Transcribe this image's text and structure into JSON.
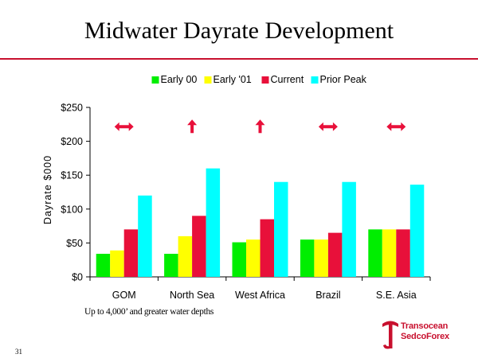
{
  "slide": {
    "title": "Midwater Dayrate Development",
    "footnote": "Up to 4,000’ and greater water depths",
    "page_number": "31",
    "logo": {
      "line1": "Transocean",
      "line2": "SedcoForex",
      "color": "#c8102e"
    }
  },
  "chart_data": {
    "type": "bar",
    "title": "",
    "xlabel": "",
    "ylabel": "Dayrate $000",
    "ylim": [
      0,
      250
    ],
    "yticks": [
      0,
      50,
      100,
      150,
      200,
      250
    ],
    "ytick_labels": [
      "$0",
      "$50",
      "$100",
      "$150",
      "$200",
      "$250"
    ],
    "categories": [
      "GOM",
      "North Sea",
      "West Africa",
      "Brazil",
      "S.E. Asia"
    ],
    "legend_position": "top-center",
    "series": [
      {
        "name": "Early 00",
        "color": "#00ee00",
        "values": [
          34,
          34,
          51,
          55,
          70
        ]
      },
      {
        "name": "Early '01",
        "color": "#ffff00",
        "values": [
          39,
          60,
          55,
          55,
          70
        ]
      },
      {
        "name": "Current",
        "color": "#e8103a",
        "values": [
          70,
          90,
          85,
          65,
          70
        ]
      },
      {
        "name": "Prior Peak",
        "color": "#00ffff",
        "values": [
          120,
          160,
          140,
          140,
          136
        ]
      }
    ],
    "annotations": [
      {
        "category": "GOM",
        "symbol": "double-arrow",
        "value": 225
      },
      {
        "category": "North Sea",
        "symbol": "up-arrow",
        "value": 225
      },
      {
        "category": "West Africa",
        "symbol": "up-arrow",
        "value": 225
      },
      {
        "category": "Brazil",
        "symbol": "double-arrow",
        "value": 225
      },
      {
        "category": "S.E. Asia",
        "symbol": "double-arrow",
        "value": 225
      }
    ]
  }
}
